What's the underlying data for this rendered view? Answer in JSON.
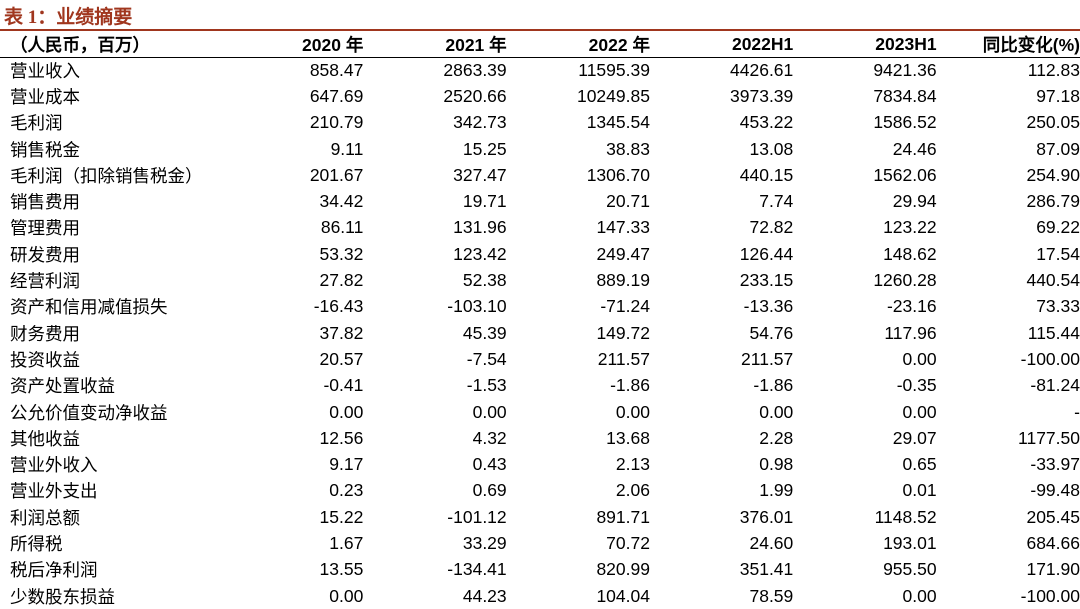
{
  "header": {
    "title": "表 1：业绩摘要"
  },
  "table": {
    "columns": [
      "（人民币，百万）",
      "2020 年",
      "2021 年",
      "2022 年",
      "2022H1",
      "2023H1",
      "同比变化(%)"
    ],
    "rows": [
      [
        "营业收入",
        "858.47",
        "2863.39",
        "11595.39",
        "4426.61",
        "9421.36",
        "112.83"
      ],
      [
        "营业成本",
        "647.69",
        "2520.66",
        "10249.85",
        "3973.39",
        "7834.84",
        "97.18"
      ],
      [
        "毛利润",
        "210.79",
        "342.73",
        "1345.54",
        "453.22",
        "1586.52",
        "250.05"
      ],
      [
        "销售税金",
        "9.11",
        "15.25",
        "38.83",
        "13.08",
        "24.46",
        "87.09"
      ],
      [
        "毛利润（扣除销售税金）",
        "201.67",
        "327.47",
        "1306.70",
        "440.15",
        "1562.06",
        "254.90"
      ],
      [
        "销售费用",
        "34.42",
        "19.71",
        "20.71",
        "7.74",
        "29.94",
        "286.79"
      ],
      [
        "管理费用",
        "86.11",
        "131.96",
        "147.33",
        "72.82",
        "123.22",
        "69.22"
      ],
      [
        "研发费用",
        "53.32",
        "123.42",
        "249.47",
        "126.44",
        "148.62",
        "17.54"
      ],
      [
        "经营利润",
        "27.82",
        "52.38",
        "889.19",
        "233.15",
        "1260.28",
        "440.54"
      ],
      [
        "资产和信用减值损失",
        "-16.43",
        "-103.10",
        "-71.24",
        "-13.36",
        "-23.16",
        "73.33"
      ],
      [
        "财务费用",
        "37.82",
        "45.39",
        "149.72",
        "54.76",
        "117.96",
        "115.44"
      ],
      [
        "投资收益",
        "20.57",
        "-7.54",
        "211.57",
        "211.57",
        "0.00",
        "-100.00"
      ],
      [
        "资产处置收益",
        "-0.41",
        "-1.53",
        "-1.86",
        "-1.86",
        "-0.35",
        "-81.24"
      ],
      [
        "公允价值变动净收益",
        "0.00",
        "0.00",
        "0.00",
        "0.00",
        "0.00",
        "-"
      ],
      [
        "其他收益",
        "12.56",
        "4.32",
        "13.68",
        "2.28",
        "29.07",
        "1177.50"
      ],
      [
        "营业外收入",
        "9.17",
        "0.43",
        "2.13",
        "0.98",
        "0.65",
        "-33.97"
      ],
      [
        "营业外支出",
        "0.23",
        "0.69",
        "2.06",
        "1.99",
        "0.01",
        "-99.48"
      ],
      [
        "利润总额",
        "15.22",
        "-101.12",
        "891.71",
        "376.01",
        "1148.52",
        "205.45"
      ],
      [
        "所得税",
        "1.67",
        "33.29",
        "70.72",
        "24.60",
        "193.01",
        "684.66"
      ],
      [
        "税后净利润",
        "13.55",
        "-134.41",
        "820.99",
        "351.41",
        "955.50",
        "171.90"
      ],
      [
        "少数股东损益",
        "0.00",
        "44.23",
        "104.04",
        "78.59",
        "0.00",
        "-100.00"
      ]
    ]
  }
}
